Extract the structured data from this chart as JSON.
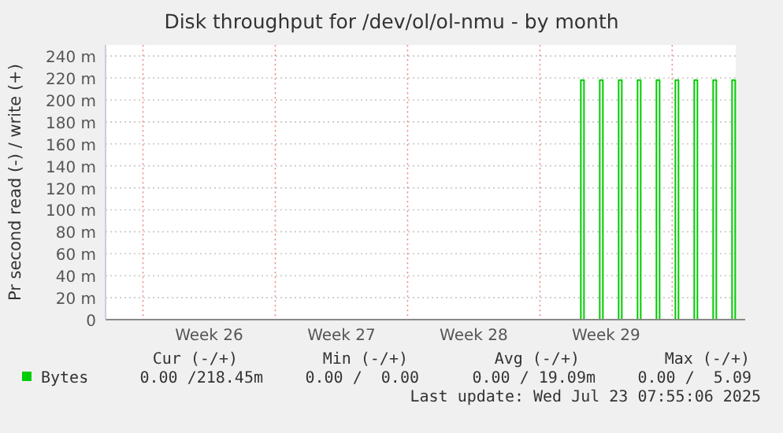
{
  "chart_data": {
    "type": "step",
    "title": "Disk throughput for /dev/ol/ol-nmu - by month",
    "ylabel": "Pr second read (-) / write (+)",
    "xlim": [
      "2025-06-21T00:30",
      "2025-07-24T08:40"
    ],
    "ylim": [
      0,
      250
    ],
    "xticks": [
      {
        "value": "2025-06-23",
        "label": null
      },
      {
        "value": "2025-06-26T12:00",
        "label": "Week 26"
      },
      {
        "value": "2025-06-30",
        "label": null
      },
      {
        "value": "2025-07-03T12:00",
        "label": "Week 27"
      },
      {
        "value": "2025-07-07",
        "label": null
      },
      {
        "value": "2025-07-10T12:00",
        "label": "Week 28"
      },
      {
        "value": "2025-07-14",
        "label": null
      },
      {
        "value": "2025-07-17T12:00",
        "label": "Week 29"
      },
      {
        "value": "2025-07-21",
        "label": null
      }
    ],
    "yticks": [
      0,
      {
        "value": 20,
        "label": "20 m"
      },
      {
        "value": 40,
        "label": "40 m"
      },
      {
        "value": 60,
        "label": "60 m"
      },
      {
        "value": 80,
        "label": "80 m"
      },
      {
        "value": 100,
        "label": "100 m"
      },
      {
        "value": 120,
        "label": "120 m"
      },
      {
        "value": 140,
        "label": "140 m"
      },
      {
        "value": 160,
        "label": "160 m"
      },
      {
        "value": 180,
        "label": "180 m"
      },
      {
        "value": 200,
        "label": "200 m"
      },
      {
        "value": 220,
        "label": "220 m"
      },
      {
        "value": 240,
        "label": "240 m"
      }
    ],
    "grid": true,
    "legend": "bottom left",
    "marker": "none",
    "series": [
      {
        "name": "Bytes",
        "color": "#00cc00",
        "x": [
          "2025-06-21T00:30",
          "2025-07-16T04:00",
          "2025-07-16T08:00",
          "2025-07-17T04:00",
          "2025-07-17T08:00",
          "2025-07-18T04:00",
          "2025-07-18T08:00",
          "2025-07-19T04:00",
          "2025-07-19T08:00",
          "2025-07-20T04:00",
          "2025-07-20T08:00",
          "2025-07-21T04:00",
          "2025-07-21T08:00",
          "2025-07-22T04:00",
          "2025-07-22T08:00",
          "2025-07-23T04:00",
          "2025-07-23T08:00",
          "2025-07-24T04:00",
          "2025-07-24T08:00"
        ],
        "values": [
          0,
          218,
          0,
          218,
          0,
          218,
          0,
          218,
          0,
          218,
          0,
          218,
          0,
          218,
          0,
          218,
          0,
          218,
          0
        ]
      }
    ],
    "annotations": [
      "Cur (-/+)",
      "Min (-/+)",
      "Avg (-/+)",
      "Max (-/+)",
      "0.00 /218.45m",
      "0.00 /  0.00",
      "0.00 / 19.09m",
      "0.00 /  5.09",
      "Last update: Wed Jul 23 07:55:06 2025"
    ]
  }
}
